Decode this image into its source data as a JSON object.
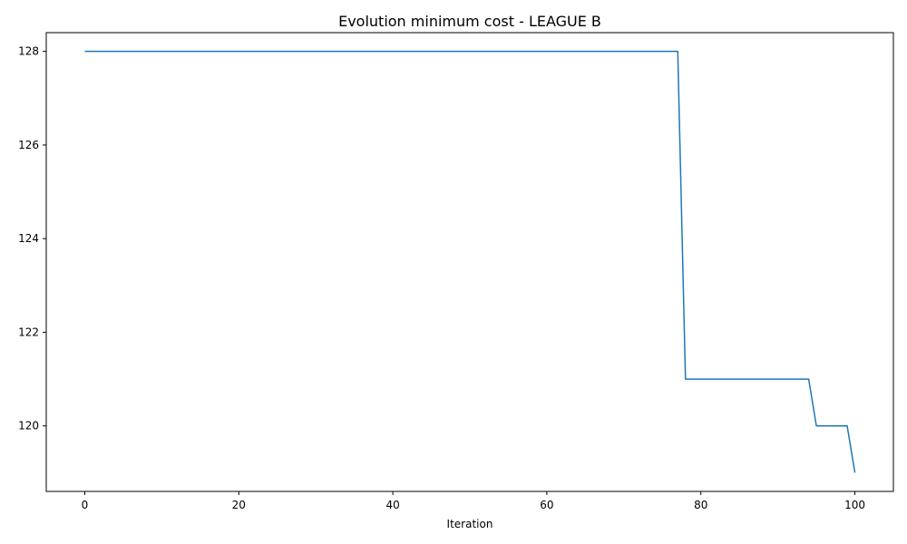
{
  "chart_data": {
    "type": "line",
    "title": "Evolution minimum cost - LEAGUE B",
    "xlabel": "Iteration",
    "ylabel": "",
    "xlim": [
      -5,
      105
    ],
    "ylim": [
      118.6,
      128.4
    ],
    "xticks": [
      0,
      20,
      40,
      60,
      80,
      100
    ],
    "yticks": [
      120,
      122,
      124,
      126,
      128
    ],
    "grid": false,
    "series": [
      {
        "color": "#1f77b4",
        "points": [
          [
            0,
            128
          ],
          [
            77,
            128
          ],
          [
            78,
            121
          ],
          [
            94,
            121
          ],
          [
            95,
            120
          ],
          [
            99,
            120
          ],
          [
            100,
            119
          ]
        ]
      }
    ]
  }
}
